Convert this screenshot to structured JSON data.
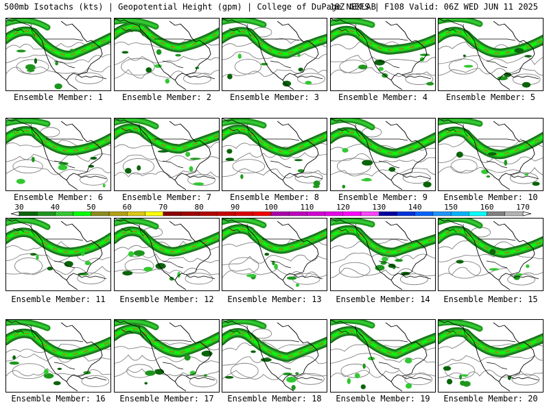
{
  "header": {
    "title_left": "500mb Isotachs (kts) | Geopotential Height (gpm) | College of DuPage NEXLAB",
    "title_right": "18Z GEFS | F108 Valid: 06Z WED JUN 11 2025"
  },
  "member_label": "Ensemble Member: ",
  "members": [
    {
      "number": 1
    },
    {
      "number": 2
    },
    {
      "number": 3
    },
    {
      "number": 4
    },
    {
      "number": 5
    },
    {
      "number": 6
    },
    {
      "number": 7
    },
    {
      "number": 8
    },
    {
      "number": 9
    },
    {
      "number": 10
    },
    {
      "number": 11
    },
    {
      "number": 12
    },
    {
      "number": 13
    },
    {
      "number": 14
    },
    {
      "number": 15
    },
    {
      "number": 16
    },
    {
      "number": 17
    },
    {
      "number": 18
    },
    {
      "number": 19
    },
    {
      "number": 20
    }
  ],
  "colorbar": {
    "unit": "kts",
    "tick_labels": [
      "30",
      "40",
      "50",
      "60",
      "70",
      "80",
      "90",
      "100",
      "110",
      "120",
      "130",
      "140",
      "150",
      "160",
      "170"
    ],
    "tick_values": [
      30,
      40,
      50,
      60,
      70,
      80,
      90,
      100,
      110,
      120,
      130,
      140,
      150,
      160,
      170
    ],
    "range": [
      30,
      170
    ],
    "bins": [
      {
        "from": 30,
        "to": 35,
        "color": "#0a640a"
      },
      {
        "from": 35,
        "to": 40,
        "color": "#1e961e"
      },
      {
        "from": 40,
        "to": 45,
        "color": "#32c832"
      },
      {
        "from": 45,
        "to": 50,
        "color": "#00ff00"
      },
      {
        "from": 50,
        "to": 55,
        "color": "#8c8c1e"
      },
      {
        "from": 55,
        "to": 60,
        "color": "#b4a014"
      },
      {
        "from": 60,
        "to": 65,
        "color": "#dcc814"
      },
      {
        "from": 65,
        "to": 70,
        "color": "#ffff00"
      },
      {
        "from": 70,
        "to": 75,
        "color": "#8b0000"
      },
      {
        "from": 75,
        "to": 80,
        "color": "#a00000"
      },
      {
        "from": 80,
        "to": 85,
        "color": "#b40000"
      },
      {
        "from": 85,
        "to": 90,
        "color": "#c80000"
      },
      {
        "from": 90,
        "to": 95,
        "color": "#dc0000"
      },
      {
        "from": 95,
        "to": 100,
        "color": "#f00000"
      },
      {
        "from": 100,
        "to": 105,
        "color": "#aa00aa"
      },
      {
        "from": 105,
        "to": 110,
        "color": "#be00be"
      },
      {
        "from": 110,
        "to": 115,
        "color": "#d200d2"
      },
      {
        "from": 115,
        "to": 120,
        "color": "#e600e6"
      },
      {
        "from": 120,
        "to": 125,
        "color": "#ff00ff"
      },
      {
        "from": 125,
        "to": 130,
        "color": "#ff46ff"
      },
      {
        "from": 130,
        "to": 135,
        "color": "#0000a0"
      },
      {
        "from": 135,
        "to": 140,
        "color": "#0032dc"
      },
      {
        "from": 140,
        "to": 145,
        "color": "#0064ff"
      },
      {
        "from": 145,
        "to": 150,
        "color": "#1e96ff"
      },
      {
        "from": 150,
        "to": 155,
        "color": "#00b4ff"
      },
      {
        "from": 155,
        "to": 160,
        "color": "#00ffff"
      },
      {
        "from": 160,
        "to": 165,
        "color": "#808080"
      },
      {
        "from": 165,
        "to": 170,
        "color": "#b4b4b4"
      }
    ]
  },
  "map_colors": {
    "jet_dark": "#0a640a",
    "jet_mid": "#1e961e",
    "jet_light": "#32c832",
    "jet_bright": "#00ff00",
    "jet_core": "#8c8c1e",
    "jet_max": "#b4a014",
    "height_contour": "#808080",
    "coastline": "#000000"
  }
}
